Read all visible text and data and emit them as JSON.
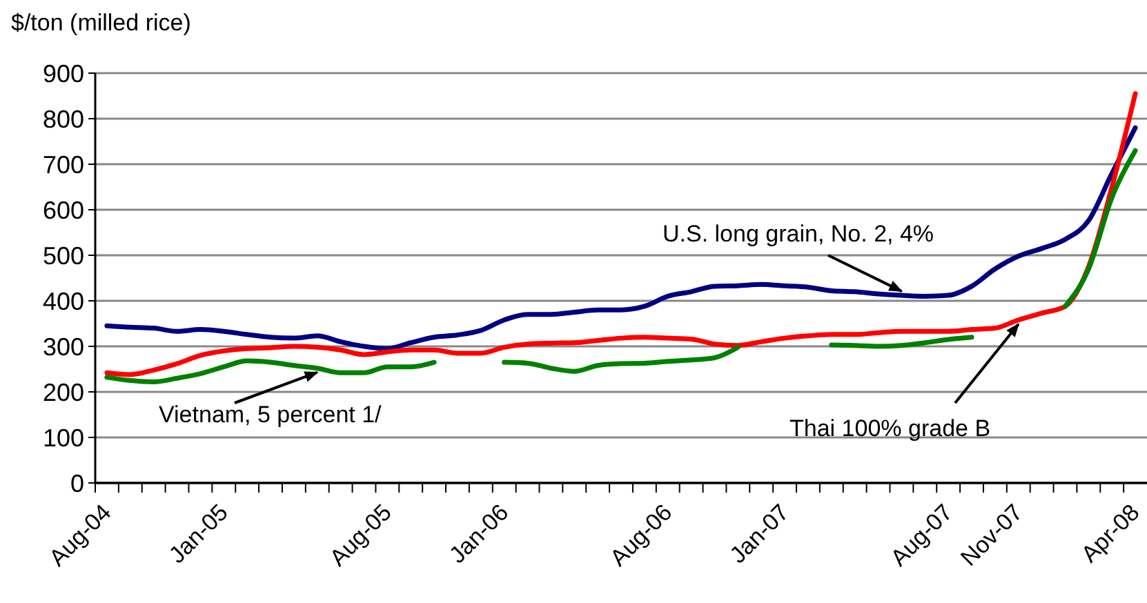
{
  "chart_data": {
    "type": "line",
    "ylabel": "$/ton (milled rice)",
    "categories": [
      "Aug-04",
      null,
      null,
      null,
      null,
      "Jan-05",
      null,
      null,
      null,
      null,
      null,
      null,
      "Aug-05",
      null,
      null,
      null,
      null,
      "Jan-06",
      null,
      null,
      null,
      null,
      null,
      null,
      "Aug-06",
      null,
      null,
      null,
      null,
      "Jan-07",
      null,
      null,
      null,
      null,
      null,
      null,
      "Aug-07",
      null,
      null,
      "Nov-07",
      null,
      null,
      null,
      null,
      "Apr-08"
    ],
    "series": [
      {
        "name": "U.S. long grain, No. 2, 4%",
        "color": "#000080",
        "values": [
          345,
          342,
          340,
          333,
          337,
          333,
          326,
          320,
          318,
          323,
          310,
          300,
          295,
          308,
          320,
          325,
          335,
          358,
          370,
          370,
          375,
          380,
          380,
          388,
          410,
          420,
          432,
          433,
          436,
          433,
          430,
          422,
          420,
          415,
          412,
          410,
          412,
          432,
          470,
          498,
          515,
          535,
          576,
          680,
          780
        ]
      },
      {
        "name": "Thai 100% grade B",
        "color": "#ff0000",
        "values": [
          242,
          238,
          248,
          262,
          280,
          290,
          295,
          297,
          300,
          298,
          292,
          282,
          288,
          292,
          292,
          285,
          285,
          298,
          305,
          307,
          308,
          313,
          318,
          320,
          318,
          316,
          305,
          302,
          310,
          318,
          323,
          326,
          326,
          330,
          333,
          333,
          333,
          337,
          340,
          358,
          373,
          388,
          475,
          650,
          855
        ]
      },
      {
        "name": "Vietnam, 5 percent 1/",
        "color": "#008000",
        "values": [
          232,
          225,
          222,
          230,
          240,
          255,
          268,
          265,
          258,
          252,
          242,
          242,
          255,
          255,
          265,
          null,
          null,
          265,
          263,
          252,
          245,
          258,
          262,
          263,
          267,
          270,
          275,
          298,
          null,
          null,
          null,
          303,
          302,
          300,
          302,
          308,
          315,
          320,
          null,
          null,
          null,
          388,
          470,
          627,
          730
        ]
      }
    ],
    "ylim": [
      0,
      900
    ],
    "yticks": [
      0,
      100,
      200,
      300,
      400,
      500,
      600,
      700,
      800,
      900
    ],
    "grid": "y",
    "legend": false,
    "line_style": "solid",
    "marker": "none"
  }
}
